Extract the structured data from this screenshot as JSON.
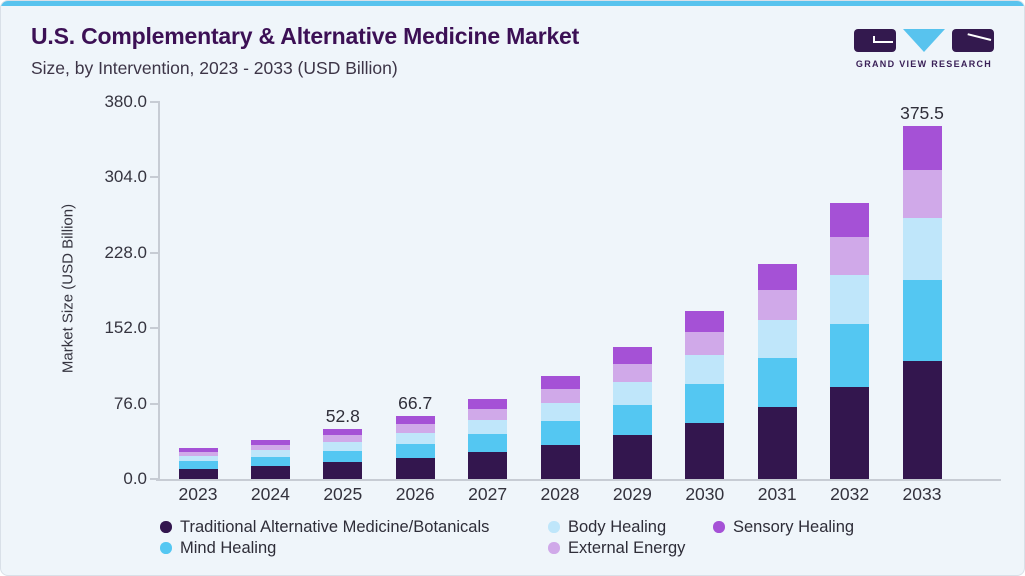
{
  "header": {
    "title": "U.S. Complementary & Alternative Medicine Market",
    "subtitle": "Size, by Intervention, 2023 - 2033 (USD Billion)"
  },
  "logo": {
    "text": "GRAND VIEW RESEARCH",
    "brand_purple": "#33194e",
    "brand_cyan": "#58c3ee"
  },
  "chart_data": {
    "type": "bar",
    "stacked": true,
    "title": "U.S. Complementary & Alternative Medicine Market Size, by Intervention, 2023 - 2033 (USD Billion)",
    "xlabel": "",
    "ylabel": "Market Size (USD Billion)",
    "ylim": [
      0,
      380
    ],
    "yticks": [
      "0.0",
      "76.0",
      "152.0",
      "228.0",
      "304.0",
      "380.0"
    ],
    "grid": false,
    "legend_position": "bottom",
    "categories": [
      "2023",
      "2024",
      "2025",
      "2026",
      "2027",
      "2028",
      "2029",
      "2030",
      "2031",
      "2032",
      "2033"
    ],
    "series": [
      {
        "name": "Traditional Alternative Medicine/Botanicals",
        "color": "#33164e",
        "values": [
          11.1,
          14.0,
          17.8,
          22.4,
          28.6,
          36.6,
          46.9,
          60.0,
          76.8,
          98.3,
          125.8
        ]
      },
      {
        "name": "Mind Healing",
        "color": "#54c7f2",
        "values": [
          7.5,
          9.5,
          12.0,
          15.2,
          19.5,
          24.9,
          31.9,
          40.8,
          52.3,
          66.9,
          85.6
        ]
      },
      {
        "name": "Body Healing",
        "color": "#bfe6fa",
        "values": [
          5.8,
          7.4,
          9.3,
          11.7,
          15.0,
          19.2,
          24.6,
          31.5,
          40.3,
          51.6,
          66.1
        ]
      },
      {
        "name": "External Energy",
        "color": "#d0a9e9",
        "values": [
          4.5,
          5.7,
          7.2,
          9.1,
          11.7,
          15.0,
          19.2,
          24.5,
          31.4,
          40.2,
          51.4
        ]
      },
      {
        "name": "Sensory Healing",
        "color": "#a551d6",
        "values": [
          4.1,
          5.2,
          6.5,
          8.3,
          10.6,
          13.6,
          17.3,
          22.2,
          28.4,
          36.3,
          46.6
        ]
      }
    ],
    "total_labels": {
      "2025": "52.8",
      "2026": "66.7",
      "2033": "375.5"
    }
  },
  "legend": {
    "items": [
      {
        "label": "Traditional Alternative Medicine/Botanicals",
        "color": "#33164e",
        "row": 0,
        "col": 0
      },
      {
        "label": "Body Healing",
        "color": "#bfe6fa",
        "row": 0,
        "col": 1
      },
      {
        "label": "Sensory Healing",
        "color": "#a551d6",
        "row": 0,
        "col": 2
      },
      {
        "label": "Mind Healing",
        "color": "#54c7f2",
        "row": 1,
        "col": 0
      },
      {
        "label": "External Energy",
        "color": "#d0a9e9",
        "row": 1,
        "col": 1
      }
    ]
  }
}
